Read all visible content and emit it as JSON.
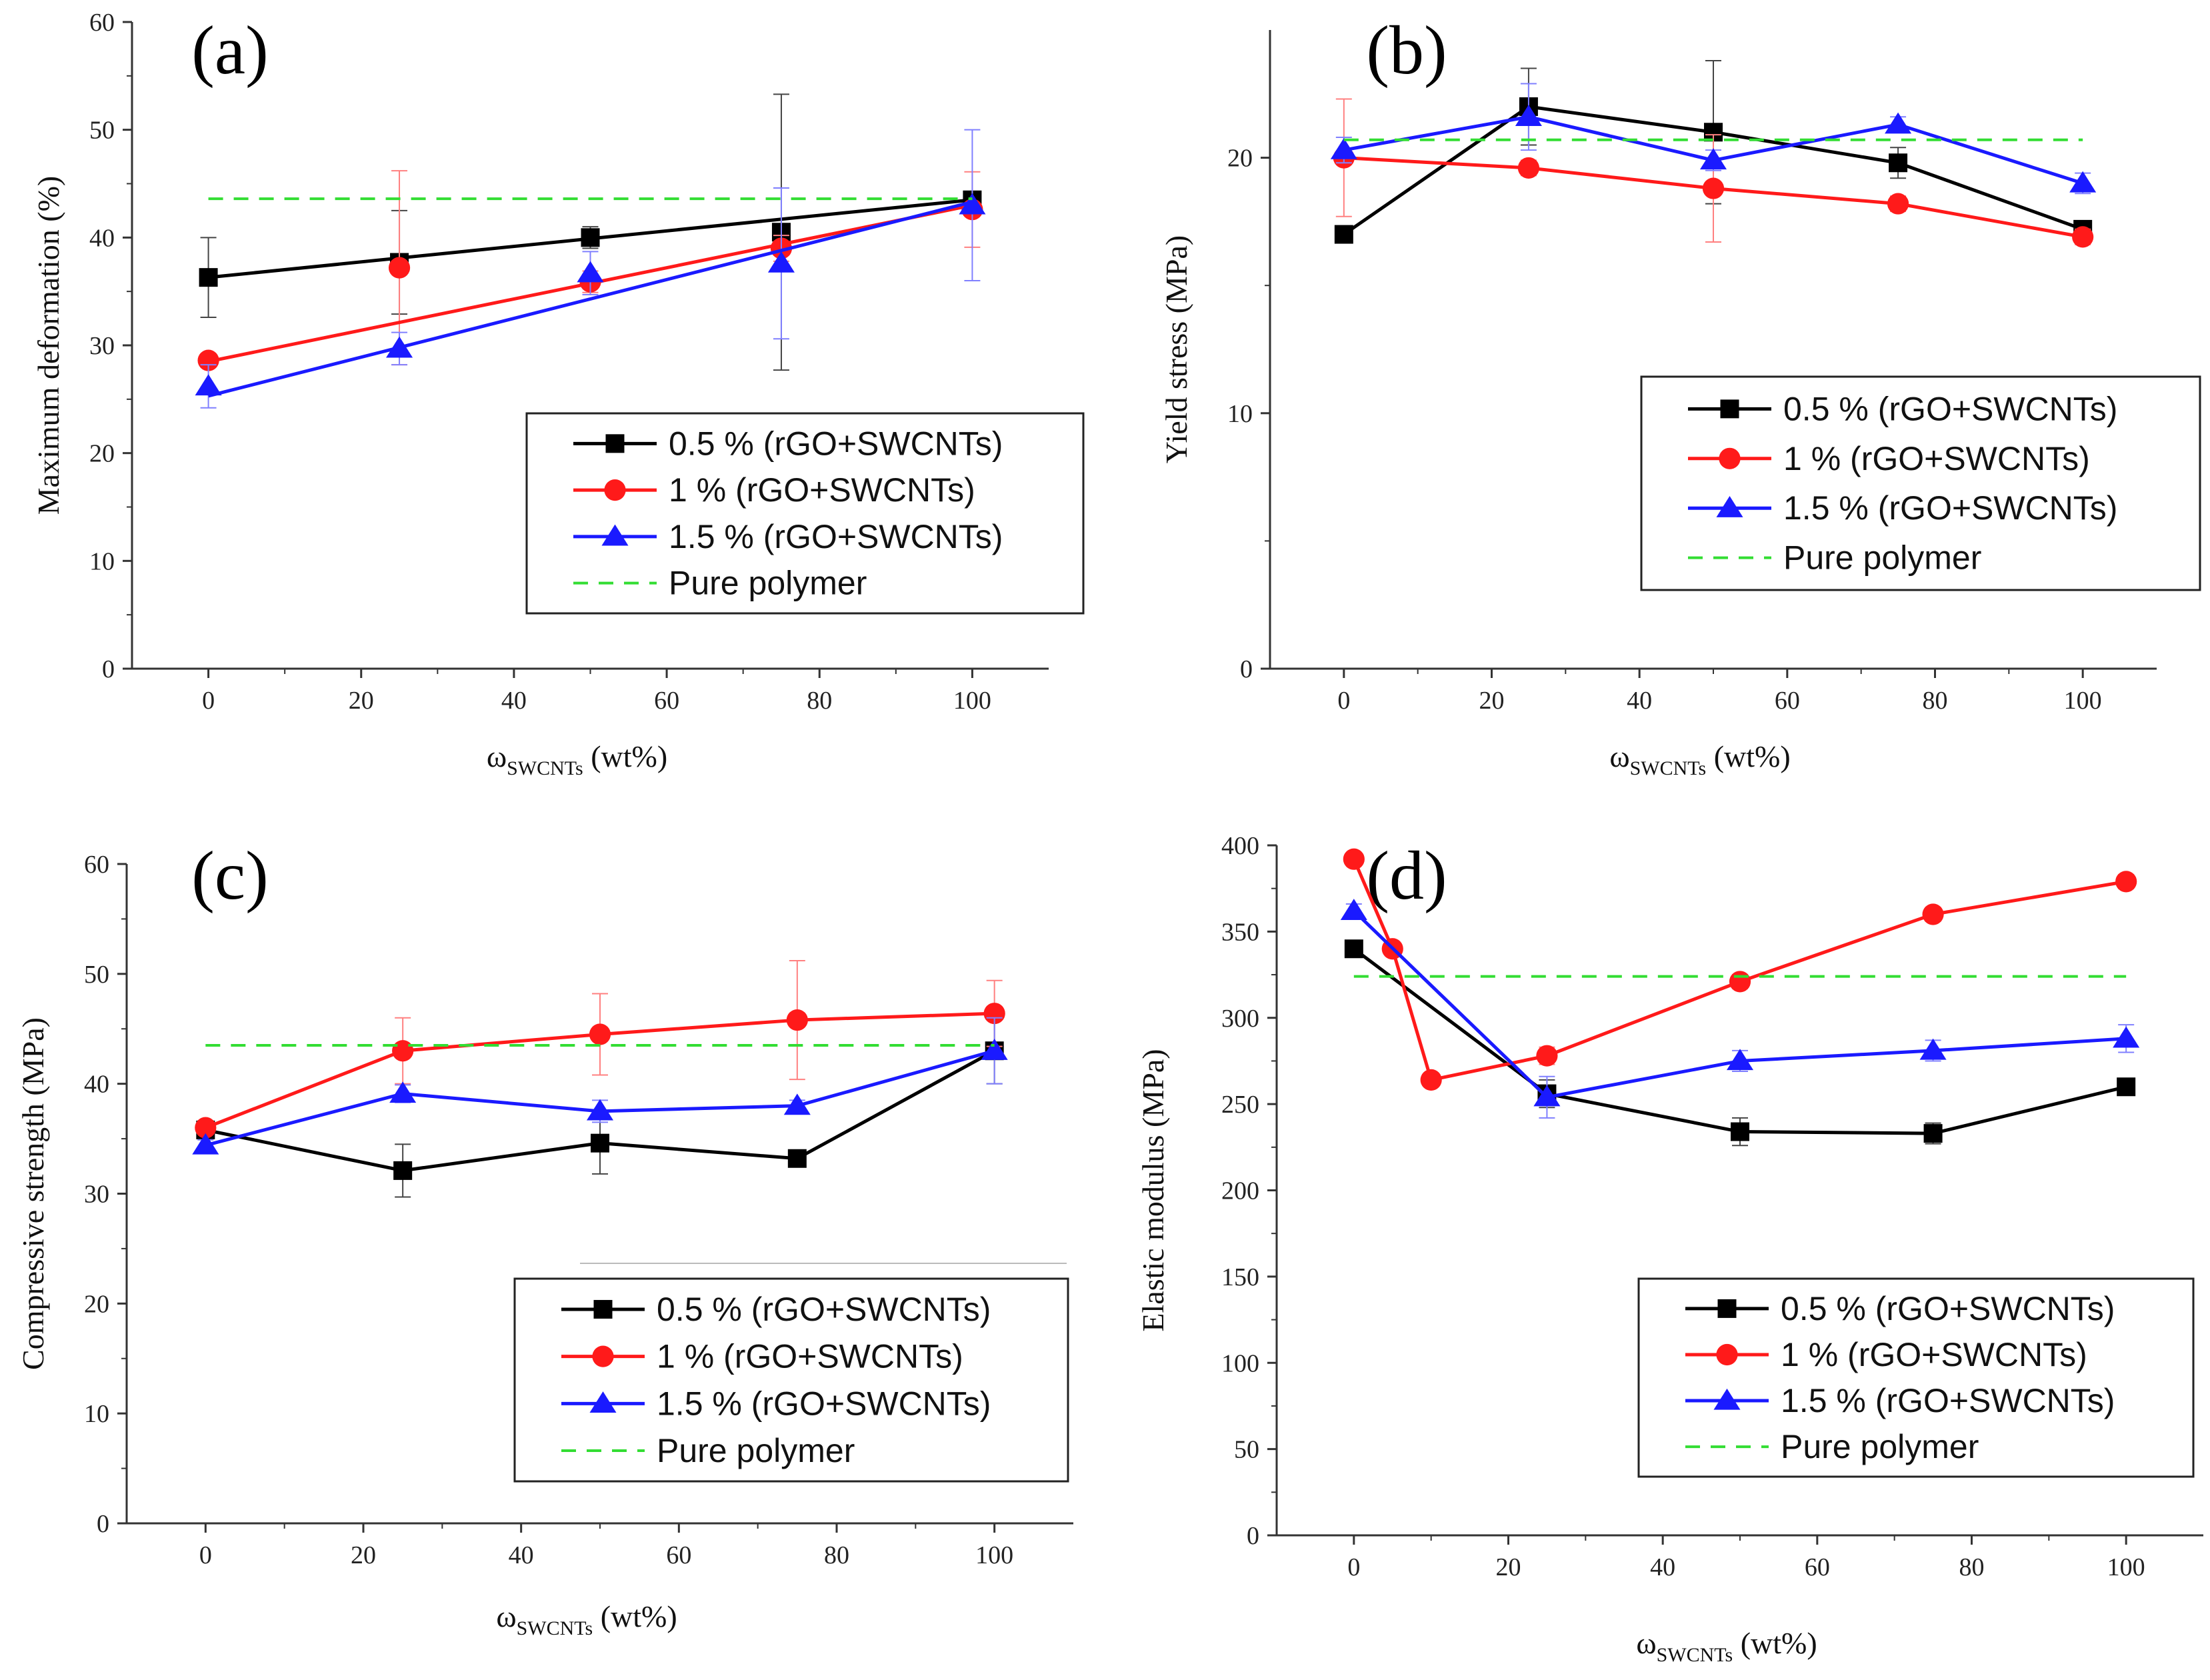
{
  "colors": {
    "black": "#000000",
    "red": "#ff1a1a",
    "blue": "#1a1aff",
    "green": "#33dd33",
    "err_red": "#ff8080",
    "err_blue": "#8080ff",
    "err_black": "#444444"
  },
  "legend_labels": [
    "0.5 % (rGO+SWCNTs)",
    "1 % (rGO+SWCNTs)",
    "1.5 % (rGO+SWCNTs)",
    "Pure polymer"
  ],
  "chart_data": [
    {
      "id": "a",
      "type": "line",
      "panel_label": "(a)",
      "ylabel": "Maximum deformation  (%)",
      "xlabel_main": "ω",
      "xlabel_sub": "SWCNTs",
      "xlabel_unit": " (wt%)",
      "xlim": [
        -10,
        110
      ],
      "ylim": [
        0,
        60
      ],
      "xticks": [
        0,
        20,
        40,
        60,
        80,
        100
      ],
      "yticks": [
        0,
        10,
        20,
        30,
        40,
        50,
        60
      ],
      "legend_position": "bottom-right",
      "series": [
        {
          "name": "0.5 % (rGO+SWCNTs)",
          "color": "#000000",
          "marker": "square",
          "x": [
            0,
            25,
            50,
            75,
            100
          ],
          "y": [
            36.3,
            37.7,
            40.0,
            40.5,
            43.5
          ],
          "err": [
            3.7,
            4.8,
            1.0,
            12.8,
            0.6
          ],
          "fit": [
            36.3,
            43.5
          ]
        },
        {
          "name": "1 % (rGO+SWCNTs)",
          "color": "#ff1a1a",
          "marker": "circle",
          "x": [
            0,
            25,
            50,
            75,
            100
          ],
          "y": [
            28.6,
            37.2,
            35.9,
            39.0,
            42.6
          ],
          "err": [
            0.6,
            9.0,
            1.0,
            1.2,
            3.5
          ],
          "fit": [
            28.5,
            43.0
          ]
        },
        {
          "name": "1.5 % (rGO+SWCNTs)",
          "color": "#1a1aff",
          "marker": "triangle",
          "x": [
            0,
            25,
            50,
            75,
            100
          ],
          "y": [
            26.2,
            29.7,
            36.7,
            37.6,
            43.0
          ],
          "err": [
            2.0,
            1.5,
            2.0,
            7.0,
            7.0
          ],
          "fit": [
            25.3,
            43.3
          ]
        },
        {
          "name": "Pure polymer",
          "color": "#33dd33",
          "marker": "none",
          "dashed": true,
          "x": [
            0,
            100
          ],
          "y": [
            43.6,
            43.6
          ]
        }
      ]
    },
    {
      "id": "b",
      "type": "line",
      "panel_label": "(b)",
      "ylabel": "Yield stress  (MPa)",
      "xlabel_main": "ω",
      "xlabel_sub": "SWCNTs",
      "xlabel_unit": " (wt%)",
      "xlim": [
        -10,
        110
      ],
      "ylim": [
        0,
        25
      ],
      "xticks": [
        0,
        20,
        40,
        60,
        80,
        100
      ],
      "yticks": [
        0,
        10,
        20
      ],
      "legend_position": "middle-right",
      "series": [
        {
          "name": "0.5 % (rGO+SWCNTs)",
          "color": "#000000",
          "marker": "square",
          "x": [
            0,
            25,
            50,
            75,
            100
          ],
          "y": [
            17.0,
            22.0,
            21.0,
            19.8,
            17.2
          ],
          "err": [
            0.3,
            1.5,
            2.8,
            0.6,
            0.3
          ]
        },
        {
          "name": "1 % (rGO+SWCNTs)",
          "color": "#ff1a1a",
          "marker": "circle",
          "x": [
            0,
            25,
            50,
            75,
            100
          ],
          "y": [
            20.0,
            19.6,
            18.8,
            18.2,
            16.9
          ],
          "err": [
            2.3,
            0.3,
            2.1,
            0.3,
            0.3
          ]
        },
        {
          "name": "1.5 % (rGO+SWCNTs)",
          "color": "#1a1aff",
          "marker": "triangle",
          "x": [
            0,
            25,
            50,
            75,
            100
          ],
          "y": [
            20.3,
            21.6,
            19.9,
            21.3,
            19.0
          ],
          "err": [
            0.5,
            1.3,
            0.4,
            0.3,
            0.4
          ]
        },
        {
          "name": "Pure polymer",
          "color": "#33dd33",
          "marker": "none",
          "dashed": true,
          "x": [
            0,
            100
          ],
          "y": [
            20.7,
            20.7
          ]
        }
      ]
    },
    {
      "id": "c",
      "type": "line",
      "panel_label": "(c)",
      "ylabel": "Compressive strength  (MPa)",
      "xlabel_main": "ω",
      "xlabel_sub": "SWCNTs",
      "xlabel_unit": " (wt%)",
      "xlim": [
        -10,
        110
      ],
      "ylim": [
        0,
        60
      ],
      "xticks": [
        0,
        20,
        40,
        60,
        80,
        100
      ],
      "yticks": [
        0,
        10,
        20,
        30,
        40,
        50,
        60
      ],
      "legend_position": "bottom-right",
      "series": [
        {
          "name": "0.5 % (rGO+SWCNTs)",
          "color": "#000000",
          "marker": "square",
          "x": [
            0,
            25,
            50,
            75,
            100
          ],
          "y": [
            35.8,
            32.1,
            34.6,
            33.2,
            43.0
          ],
          "err": [
            0.5,
            2.4,
            2.8,
            0.4,
            3.0
          ]
        },
        {
          "name": "1 % (rGO+SWCNTs)",
          "color": "#ff1a1a",
          "marker": "circle",
          "x": [
            0,
            25,
            50,
            75,
            100
          ],
          "y": [
            36.0,
            43.0,
            44.5,
            45.8,
            46.4
          ],
          "err": [
            0.6,
            3.0,
            3.7,
            5.4,
            3.0
          ]
        },
        {
          "name": "1.5 % (rGO+SWCNTs)",
          "color": "#1a1aff",
          "marker": "triangle",
          "x": [
            0,
            25,
            50,
            75,
            100
          ],
          "y": [
            34.4,
            39.1,
            37.5,
            38.0,
            43.0
          ],
          "err": [
            0.5,
            0.8,
            1.0,
            0.5,
            3.0
          ]
        },
        {
          "name": "Pure polymer",
          "color": "#33dd33",
          "marker": "none",
          "dashed": true,
          "x": [
            0,
            100
          ],
          "y": [
            43.5,
            43.5
          ]
        }
      ]
    },
    {
      "id": "d",
      "type": "line",
      "panel_label": "(d)",
      "ylabel": "Elastic modulus (MPa)",
      "xlabel_main": "ω",
      "xlabel_sub": "SWCNTs",
      "xlabel_unit": " (wt%)",
      "xlim": [
        -10,
        110
      ],
      "ylim": [
        0,
        400
      ],
      "xticks": [
        0,
        20,
        40,
        60,
        80,
        100
      ],
      "yticks": [
        0,
        50,
        100,
        150,
        200,
        250,
        300,
        350,
        400
      ],
      "legend_position": "bottom-right",
      "series": [
        {
          "name": "0.5 % (rGO+SWCNTs)",
          "color": "#000000",
          "marker": "square",
          "x": [
            0,
            25,
            50,
            75,
            100
          ],
          "y": [
            340,
            256,
            234,
            233,
            260
          ],
          "err": [
            4,
            8,
            8,
            6,
            4
          ]
        },
        {
          "name": "1 % (rGO+SWCNTs)",
          "color": "#ff1a1a",
          "marker": "circle",
          "x": [
            0,
            5,
            10,
            25,
            50,
            75,
            100
          ],
          "y": [
            392,
            340,
            264,
            278,
            321,
            360,
            379
          ],
          "err": [
            3,
            3,
            3,
            5,
            4,
            4,
            4
          ]
        },
        {
          "name": "1.5 % (rGO+SWCNTs)",
          "color": "#1a1aff",
          "marker": "triangle",
          "x": [
            0,
            25,
            50,
            75,
            100
          ],
          "y": [
            362,
            254,
            275,
            281,
            288
          ],
          "err": [
            4,
            12,
            6,
            6,
            8
          ]
        },
        {
          "name": "Pure polymer",
          "color": "#33dd33",
          "marker": "none",
          "dashed": true,
          "x": [
            0,
            100
          ],
          "y": [
            324,
            324
          ]
        }
      ]
    }
  ]
}
